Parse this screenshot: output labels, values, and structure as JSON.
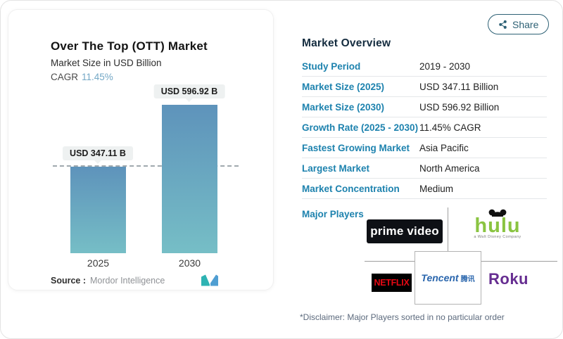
{
  "share": {
    "label": "Share"
  },
  "chart_card": {
    "title": "Over The Top (OTT) Market",
    "subtitle": "Market Size in USD Billion",
    "cagr_label": "CAGR",
    "cagr_value": "11.45%",
    "source_label": "Source :",
    "source_value": "Mordor Intelligence"
  },
  "chart_data": {
    "type": "bar",
    "title": "Over The Top (OTT) Market",
    "subtitle": "Market Size in USD Billion",
    "unit": "USD Billion",
    "categories": [
      "2025",
      "2030"
    ],
    "values": [
      347.11,
      596.92
    ],
    "bar_labels": [
      "USD 347.11 B",
      "USD 596.92 B"
    ],
    "reference_line_value": 347.11,
    "ylim": [
      0,
      596.92
    ],
    "grid": false,
    "bar_gradient_top": "#5e93bb",
    "bar_gradient_bottom": "#76bec6"
  },
  "overview": {
    "heading": "Market Overview",
    "rows": [
      {
        "label": "Study Period",
        "value": "2019 - 2030"
      },
      {
        "label": "Market Size (2025)",
        "value": "USD 347.11 Billion"
      },
      {
        "label": "Market Size (2030)",
        "value": "USD 596.92 Billion"
      },
      {
        "label": "Growth Rate (2025 - 2030)",
        "value": "11.45% CAGR"
      },
      {
        "label": "Fastest Growing Market",
        "value": "Asia Pacific"
      },
      {
        "label": "Largest Market",
        "value": "North America"
      },
      {
        "label": "Market Concentration",
        "value": "Medium"
      }
    ],
    "major_players_label": "Major Players",
    "disclaimer": "*Disclaimer: Major Players sorted in no particular order"
  },
  "players": {
    "prime_video": "prime video",
    "hulu": "hulu",
    "hulu_tagline": "a Walt Disney Company",
    "netflix": "NETFLIX",
    "tencent": "Tencent",
    "tencent_cn": "腾讯",
    "roku": "Roku"
  },
  "colors": {
    "accent_link": "#1d82ae",
    "heading": "#142c3f",
    "cagr_value": "#74a8c6",
    "share": "#2e6175",
    "bar_top": "#5e93bb",
    "bar_bottom": "#76bec6",
    "hulu_green": "#8ac441",
    "netflix_red": "#e50914",
    "roku_purple": "#662d91",
    "tencent_blue": "#2a66ad"
  }
}
